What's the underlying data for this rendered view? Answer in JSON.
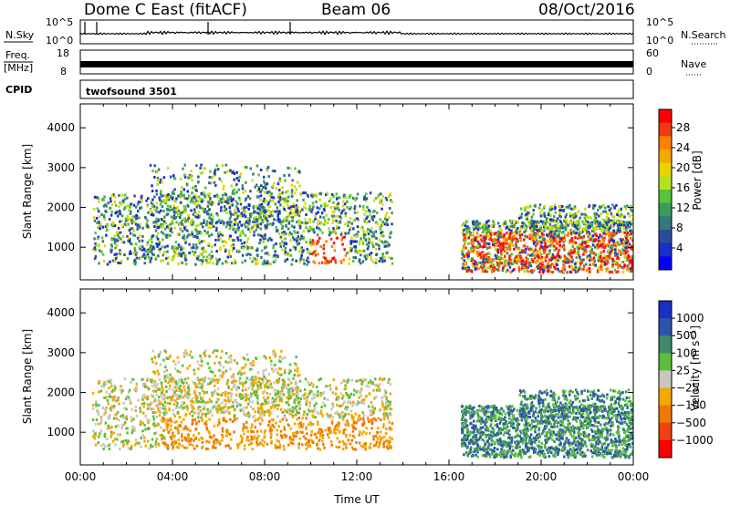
{
  "header": {
    "title": "Dome C East (fitACF)",
    "beam": "Beam 06",
    "date": "08/Oct/2016"
  },
  "top_panels": {
    "nsky_label": "N.Sky",
    "nsky_ticks": [
      "10^5",
      "10^0"
    ],
    "nsearch_label": "N.Search",
    "nsearch_ticks": [
      "10^5",
      "10^0"
    ],
    "freq_label": "Freq.",
    "freq_unit": "[MHz]",
    "freq_ticks": [
      "18",
      "8"
    ],
    "nave_label": "Nave",
    "nave_ticks": [
      "60",
      "0"
    ],
    "cpid_label": "CPID",
    "cpid_value": "twofsound 3501"
  },
  "chart_data": [
    {
      "type": "heatmap",
      "name": "power",
      "ylabel": "Slant Range [km]",
      "xlabel": "Time UT",
      "xlim": [
        0,
        24
      ],
      "ylim": [
        180,
        4600
      ],
      "x_ticks": [
        "00:00",
        "04:00",
        "08:00",
        "12:00",
        "16:00",
        "20:00",
        "00:00"
      ],
      "y_ticks": [
        "1000",
        "2000",
        "3000",
        "4000"
      ],
      "colorbar": {
        "label": "Power [dB]",
        "ticks": [
          "28",
          "24",
          "20",
          "16",
          "12",
          "8",
          "4"
        ],
        "colors": [
          "#ff0000",
          "#ee3a12",
          "#ff7f00",
          "#f5a800",
          "#e7d400",
          "#b6e01c",
          "#55c43a",
          "#3c9c5c",
          "#357a7a",
          "#2b4c9e",
          "#1a2fc8",
          "#0000ff"
        ]
      }
    },
    {
      "type": "heatmap",
      "name": "velocity",
      "ylabel": "Slant Range [km]",
      "xlabel": "Time UT",
      "xlim": [
        0,
        24
      ],
      "ylim": [
        180,
        4600
      ],
      "x_ticks": [
        "00:00",
        "04:00",
        "08:00",
        "12:00",
        "16:00",
        "20:00",
        "00:00"
      ],
      "y_ticks": [
        "1000",
        "2000",
        "3000",
        "4000"
      ],
      "colorbar": {
        "label": "Velocity [m s^-1]",
        "ticks": [
          "1000",
          "500",
          "100",
          "25",
          "-25",
          "-100",
          "-500",
          "-1000"
        ],
        "colors": [
          "#1a2fc8",
          "#2b55a8",
          "#3f8a6a",
          "#5cbe3c",
          "#c8c8c0",
          "#f2a800",
          "#f07800",
          "#f04010",
          "#ff0000"
        ]
      }
    }
  ]
}
